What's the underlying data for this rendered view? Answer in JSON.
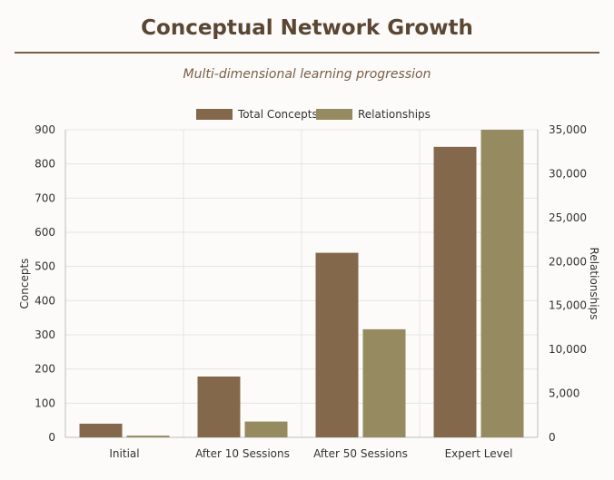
{
  "title": "Conceptual Network Growth",
  "subtitle": "Multi-dimensional learning progression",
  "colors": {
    "concepts": "#84684b",
    "relationships": "#968b60",
    "grid": "#e4e4e4",
    "rule": "#7a6048"
  },
  "chart_data": {
    "type": "bar",
    "categories": [
      "Initial",
      "After 10 Sessions",
      "After 50 Sessions",
      "Expert Level"
    ],
    "series": [
      {
        "name": "Total Concepts",
        "axis": "left",
        "values": [
          40,
          178,
          540,
          850
        ]
      },
      {
        "name": "Relationships",
        "axis": "right",
        "values": [
          200,
          1800,
          12300,
          35000
        ]
      }
    ],
    "ylabel": "Concepts",
    "ylabel_right": "Relationships",
    "ylim": [
      0,
      900
    ],
    "ylim_right": [
      0,
      35000
    ],
    "yticks": [
      "0",
      "100",
      "200",
      "300",
      "400",
      "500",
      "600",
      "700",
      "800",
      "900"
    ],
    "yticks_right": [
      "0",
      "5,000",
      "10,000",
      "15,000",
      "20,000",
      "25,000",
      "30,000",
      "35,000"
    ],
    "legend": "top-center",
    "grid": true
  }
}
